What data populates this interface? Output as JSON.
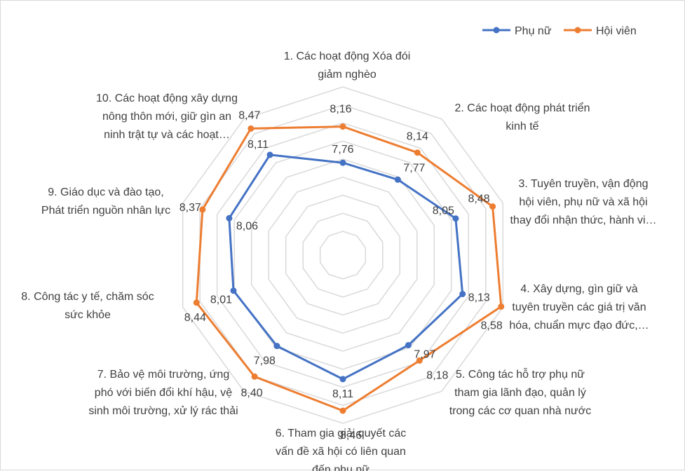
{
  "chart_data": {
    "type": "radar",
    "categories": [
      [
        "1.    Các hoạt động Xóa đói",
        "giảm nghèo"
      ],
      [
        "2.    Các hoạt động phát triển",
        "kinh tế"
      ],
      [
        "3.    Tuyên truyền, vận động",
        "hội viên, phụ nữ và xã hội",
        "thay đổi nhận thức, hành vi…"
      ],
      [
        "4.    Xây dựng, gìn giữ và",
        "tuyên truyền các giá trị văn",
        "hóa, chuẩn mực đạo đức,…"
      ],
      [
        "5.    Công tác hỗ trợ phụ nữ",
        "tham gia lãnh đạo, quản lý",
        "trong các cơ quan nhà nước"
      ],
      [
        "6.    Tham gia giải quyết các",
        "vấn đề xã hội có liên quan",
        "đến phụ nữ"
      ],
      [
        "7.    Bảo vệ môi trường, ứng",
        "phó với biến đổi khí hậu, vệ",
        "sinh môi trường, xử lý rác thải"
      ],
      [
        "8.    Công tác y tế, chăm sóc",
        "sức khỏe"
      ],
      [
        "9.    Giáo dục và đào tạo,",
        "Phát triển nguồn nhân lực"
      ],
      [
        "10. Các hoạt động xây dựng",
        "nông thôn mới, giữ gìn an",
        "ninh trật tự và các hoạt…"
      ]
    ],
    "series": [
      {
        "name": "Phụ nữ",
        "color": "#4472c4",
        "values": [
          7.76,
          7.77,
          8.05,
          8.13,
          7.97,
          8.11,
          7.98,
          8.01,
          8.06,
          8.11
        ],
        "labels": [
          "7,76",
          "7,77",
          "8,05",
          "8,13",
          "7,97",
          "8,11",
          "7,98",
          "8,01",
          "8,06",
          "8,11"
        ]
      },
      {
        "name": "Hội viên",
        "color": "#ed7d31",
        "values": [
          8.16,
          8.14,
          8.48,
          8.58,
          8.18,
          8.46,
          8.4,
          8.44,
          8.37,
          8.47
        ],
        "labels": [
          "8,16",
          "8,14",
          "8,48",
          "8,58",
          "8,18",
          "8,46",
          "8,40",
          "8,44",
          "8,37",
          "8,47"
        ]
      }
    ],
    "rlim": [
      7.0,
      8.6
    ],
    "grid": true,
    "grid_color": "#d9d9d9",
    "legend_position": "top-right"
  }
}
